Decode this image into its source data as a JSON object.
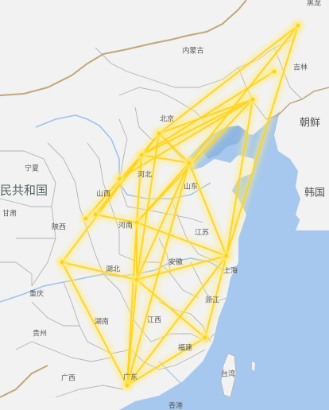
{
  "labels": {
    "heilongjiang_partial": "黑龙",
    "neimenggu": "内蒙古",
    "jilin": "吉林",
    "beijing": "北京",
    "hebei": "河北",
    "shanxi": "山西",
    "shandong": "山东",
    "henan": "河南",
    "ningxia": "宁夏",
    "gansu": "甘肃",
    "shaanxi": "陕西",
    "jiangsu": "江苏",
    "anhui": "安徽",
    "hubei": "湖北",
    "shanghai": "上海",
    "zhejiang": "浙江",
    "chongqing": "重庆",
    "hunan": "湖南",
    "jiangxi": "江西",
    "guizhou": "贵州",
    "fujian": "福建",
    "guangxi": "广西",
    "guangdong": "广东",
    "taiwan": "台湾",
    "xianggang": "香港",
    "chaoxian": "朝鲜",
    "hanguo": "韩国",
    "country_partial": "民共和国"
  },
  "colors": {
    "land": "#f2f2f2",
    "sea": "#a6c8ee",
    "border": "#b3b3b3",
    "national_border": "#c2a877",
    "river": "#9ec4ec",
    "flow": "#ffd21a",
    "flow_glow": "#ffeb7a"
  },
  "flows": [
    {
      "from": "heilongjiang_top",
      "to": "beijing"
    },
    {
      "from": "heilongjiang_top",
      "to": "shandong"
    },
    {
      "from": "heilongjiang_top",
      "to": "shanghai"
    },
    {
      "from": "liaoning",
      "to": "hebei"
    },
    {
      "from": "liaoning",
      "to": "henan"
    },
    {
      "from": "liaoning",
      "to": "shanxi"
    },
    {
      "from": "liaoning",
      "to": "shanghai"
    },
    {
      "from": "liaoning",
      "to": "beijing"
    },
    {
      "from": "beijing",
      "to": "hebei"
    },
    {
      "from": "beijing",
      "to": "shandong"
    },
    {
      "from": "hebei",
      "to": "henan"
    },
    {
      "from": "hebei",
      "to": "shandong"
    },
    {
      "from": "shandong",
      "to": "henan"
    },
    {
      "from": "shandong",
      "to": "shanghai"
    },
    {
      "from": "shandong",
      "to": "hubei"
    },
    {
      "from": "shandong",
      "to": "guangdong"
    },
    {
      "from": "henan",
      "to": "hubei"
    },
    {
      "from": "henan",
      "to": "shanghai"
    },
    {
      "from": "henan",
      "to": "guangdong"
    },
    {
      "from": "hubei",
      "to": "shanghai"
    },
    {
      "from": "hubei",
      "to": "fujian"
    },
    {
      "from": "hubei",
      "to": "guangdong"
    },
    {
      "from": "shanghai",
      "to": "fujian"
    },
    {
      "from": "shanghai",
      "to": "guangdong"
    },
    {
      "from": "guangdong",
      "to": "fujian"
    },
    {
      "from": "chongqing",
      "to": "guangdong"
    },
    {
      "from": "chongqing",
      "to": "hubei"
    },
    {
      "from": "chongqing",
      "to": "beijing"
    },
    {
      "from": "shaanxi",
      "to": "henan"
    },
    {
      "from": "shaanxi",
      "to": "beijing"
    },
    {
      "from": "gansu_w",
      "to": "hebei"
    },
    {
      "from": "hubei",
      "to": "beijing"
    },
    {
      "from": "jilin",
      "to": "hebei"
    }
  ]
}
